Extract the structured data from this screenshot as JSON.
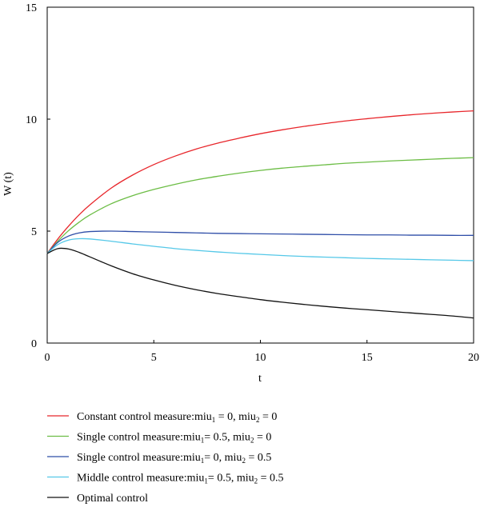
{
  "chart_data": {
    "type": "line",
    "title": "",
    "xlabel": "t",
    "ylabel": "W (t)",
    "xlim": [
      0,
      20
    ],
    "ylim": [
      0,
      15
    ],
    "xticks": [
      0,
      5,
      10,
      15,
      20
    ],
    "yticks": [
      0,
      5,
      10,
      15
    ],
    "grid": false,
    "legend_position": "bottom",
    "x": [
      0,
      0.5,
      1,
      1.5,
      2,
      3,
      4,
      5,
      6,
      7,
      8,
      9,
      10,
      11,
      12,
      13,
      14,
      15,
      16,
      17,
      18,
      19,
      20
    ],
    "series": [
      {
        "name": "Constant control measure:miu1 = 0, miu2 = 0",
        "legend_parts": [
          "Constant control measure:miu",
          "1",
          " = 0, miu",
          "2",
          " = 0"
        ],
        "color": "#e8262b",
        "values": [
          4.0,
          4.65,
          5.22,
          5.73,
          6.17,
          6.92,
          7.5,
          7.97,
          8.35,
          8.67,
          8.93,
          9.15,
          9.35,
          9.52,
          9.67,
          9.8,
          9.92,
          10.02,
          10.11,
          10.19,
          10.26,
          10.32,
          10.37
        ]
      },
      {
        "name": "Single control measure:miu1 = 0.5, miu2 = 0",
        "legend_parts": [
          "Single control measure:miu",
          "1",
          "= 0.5, miu",
          "2",
          " = 0"
        ],
        "color": "#6cbd45",
        "values": [
          4.0,
          4.55,
          5.02,
          5.4,
          5.72,
          6.22,
          6.58,
          6.86,
          7.09,
          7.29,
          7.45,
          7.59,
          7.71,
          7.81,
          7.89,
          7.96,
          8.03,
          8.08,
          8.13,
          8.17,
          8.21,
          8.25,
          8.28
        ]
      },
      {
        "name": "Single control measure:miu1 = 0, miu2 = 0.5",
        "legend_parts": [
          "Single control measure:miu",
          "1",
          "= 0, miu",
          "2",
          " = 0.5"
        ],
        "color": "#2f4ea8",
        "values": [
          4.0,
          4.5,
          4.78,
          4.92,
          4.98,
          5.0,
          4.98,
          4.96,
          4.94,
          4.92,
          4.9,
          4.89,
          4.88,
          4.87,
          4.86,
          4.85,
          4.84,
          4.83,
          4.83,
          4.82,
          4.82,
          4.81,
          4.81
        ]
      },
      {
        "name": "Middle control measure:miu1 = 0.5, miu2 = 0.5",
        "legend_parts": [
          "Middle control measure:miu",
          "1",
          "= 0.5, miu",
          "2",
          " = 0.5"
        ],
        "color": "#55c8e8",
        "values": [
          4.0,
          4.4,
          4.6,
          4.66,
          4.65,
          4.55,
          4.43,
          4.32,
          4.22,
          4.14,
          4.07,
          4.01,
          3.96,
          3.91,
          3.87,
          3.84,
          3.81,
          3.78,
          3.76,
          3.74,
          3.72,
          3.7,
          3.68
        ]
      },
      {
        "name": "Optimal control",
        "legend_parts": [
          "Optimal control"
        ],
        "color": "#111111",
        "values": [
          4.0,
          4.22,
          4.2,
          4.05,
          3.85,
          3.45,
          3.1,
          2.82,
          2.58,
          2.38,
          2.21,
          2.07,
          1.94,
          1.83,
          1.73,
          1.64,
          1.56,
          1.49,
          1.42,
          1.35,
          1.28,
          1.21,
          1.12
        ]
      }
    ]
  }
}
